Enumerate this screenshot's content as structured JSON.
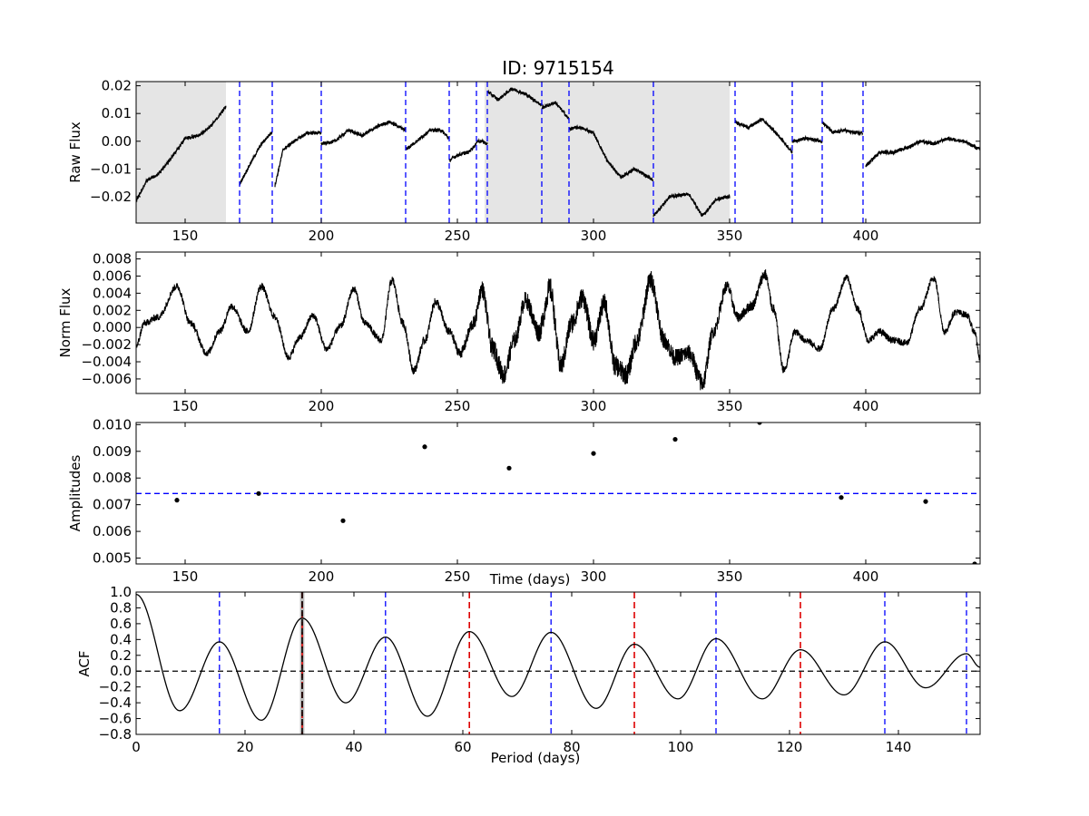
{
  "title": "ID: 9715154",
  "chart_data": [
    {
      "type": "line",
      "panel": "raw",
      "ylabel": "Raw Flux",
      "xlabel": "",
      "xlim": [
        132,
        442
      ],
      "ylim": [
        -0.0295,
        0.0215
      ],
      "xticks": [
        150,
        200,
        250,
        300,
        350,
        400
      ],
      "yticks": [
        0.02,
        0.01,
        0.0,
        -0.01,
        -0.02
      ],
      "ytick_labels": [
        "0.02",
        "0.01",
        "0.00",
        "−0.01",
        "−0.02"
      ],
      "shaded_regions": [
        [
          132,
          165
        ],
        [
          260,
          350
        ]
      ],
      "quarter_boundaries": [
        170,
        182,
        200,
        231,
        247,
        257,
        261,
        281,
        291,
        322,
        352,
        373,
        384,
        399
      ],
      "segments": [
        {
          "x": [
            132,
            136,
            140,
            145,
            150,
            155,
            160,
            165
          ],
          "y": [
            -0.0215,
            -0.014,
            -0.012,
            -0.006,
            0.001,
            0.002,
            0.006,
            0.0125
          ]
        },
        {
          "x": [
            170,
            174,
            178,
            182
          ],
          "y": [
            -0.0155,
            -0.008,
            -0.001,
            0.0035
          ]
        },
        {
          "x": [
            183,
            186,
            190,
            195,
            200
          ],
          "y": [
            -0.016,
            -0.003,
            0.0,
            0.003,
            0.003
          ]
        },
        {
          "x": [
            200,
            205,
            210,
            215,
            220,
            225,
            231
          ],
          "y": [
            -0.001,
            0.0,
            0.004,
            0.002,
            0.005,
            0.007,
            0.004
          ]
        },
        {
          "x": [
            231,
            235,
            240,
            244,
            247
          ],
          "y": [
            -0.003,
            0.0,
            0.004,
            0.004,
            0.001
          ]
        },
        {
          "x": [
            247,
            250,
            254,
            257
          ],
          "y": [
            -0.007,
            -0.005,
            -0.004,
            -0.001
          ]
        },
        {
          "x": [
            257,
            259,
            261
          ],
          "y": [
            0.0,
            0.0,
            -0.001
          ]
        },
        {
          "x": [
            261,
            265,
            270,
            275,
            281
          ],
          "y": [
            0.018,
            0.015,
            0.019,
            0.017,
            0.013
          ]
        },
        {
          "x": [
            281,
            286,
            291
          ],
          "y": [
            0.012,
            0.014,
            0.008
          ]
        },
        {
          "x": [
            291,
            295,
            300,
            305,
            310,
            315,
            322
          ],
          "y": [
            0.0045,
            0.005,
            0.003,
            -0.007,
            -0.013,
            -0.01,
            -0.014
          ]
        },
        {
          "x": [
            322,
            328,
            335,
            340,
            345,
            350
          ],
          "y": [
            -0.027,
            -0.02,
            -0.019,
            -0.027,
            -0.021,
            -0.02
          ]
        },
        {
          "x": [
            352,
            357,
            362,
            368,
            373
          ],
          "y": [
            0.007,
            0.005,
            0.008,
            0.002,
            -0.004
          ]
        },
        {
          "x": [
            373,
            378,
            384
          ],
          "y": [
            0.0,
            0.001,
            0.0
          ]
        },
        {
          "x": [
            384,
            388,
            392,
            396,
            399
          ],
          "y": [
            0.007,
            0.003,
            0.004,
            0.003,
            0.003
          ]
        },
        {
          "x": [
            400,
            405,
            410,
            416,
            420,
            425,
            430,
            436,
            442
          ],
          "y": [
            -0.009,
            -0.004,
            -0.004,
            -0.002,
            0.0,
            -0.001,
            0.001,
            0.0,
            -0.003
          ]
        }
      ]
    },
    {
      "type": "line",
      "panel": "norm",
      "ylabel": "Norm Flux",
      "xlabel": "",
      "xlim": [
        132,
        442
      ],
      "ylim": [
        -0.0077,
        0.0088
      ],
      "xticks": [
        150,
        200,
        250,
        300,
        350,
        400
      ],
      "yticks": [
        0.008,
        0.006,
        0.004,
        0.002,
        0.0,
        -0.002,
        -0.004,
        -0.006
      ],
      "ytick_labels": [
        "0.008",
        "0.006",
        "0.004",
        "0.002",
        "0.000",
        "−0.002",
        "−0.004",
        "−0.006"
      ],
      "x": [
        132,
        135,
        140,
        147,
        152,
        158,
        163,
        167,
        173,
        178,
        183,
        188,
        192,
        197,
        202,
        207,
        212,
        216,
        222,
        226,
        230,
        234,
        238,
        242,
        247,
        251,
        256,
        259,
        263,
        267,
        271,
        275,
        280,
        284,
        288,
        292,
        296,
        300,
        304,
        308,
        312,
        316,
        321,
        326,
        330,
        335,
        340,
        344,
        349,
        353,
        358,
        363,
        366,
        370,
        374,
        378,
        383,
        388,
        393,
        397,
        401,
        405,
        410,
        415,
        420,
        425,
        429,
        433,
        437,
        440,
        442
      ],
      "y": [
        -0.0022,
        0.0005,
        0.0012,
        0.0048,
        0.0005,
        -0.003,
        -0.0003,
        0.0025,
        -0.0005,
        0.0048,
        0.0012,
        -0.0035,
        -0.0012,
        0.0014,
        -0.0025,
        0.0001,
        0.0045,
        0.0005,
        -0.0015,
        0.0055,
        0.0005,
        -0.005,
        -0.0015,
        0.003,
        -0.0005,
        -0.003,
        0.0005,
        0.0045,
        -0.0025,
        -0.0055,
        -0.0015,
        0.0032,
        -0.0005,
        0.0045,
        -0.0045,
        0.0005,
        0.0035,
        -0.0015,
        0.0028,
        -0.0045,
        -0.0055,
        -0.0015,
        0.0055,
        -0.0015,
        -0.0035,
        -0.003,
        -0.0065,
        -0.0005,
        0.0048,
        0.0012,
        0.0025,
        0.0062,
        0.0022,
        -0.005,
        -0.0005,
        -0.0015,
        -0.0025,
        0.0022,
        0.0058,
        0.0022,
        -0.0015,
        -0.0005,
        -0.0015,
        -0.0018,
        0.0022,
        0.0058,
        -0.0005,
        0.0018,
        0.0015,
        -0.0005,
        -0.0038
      ],
      "noise_amplitude": [
        0.0004,
        0.0004,
        0.0004,
        0.0004,
        0.0004,
        0.0004,
        0.0004,
        0.0004,
        0.0004,
        0.0004,
        0.0004,
        0.0004,
        0.0004,
        0.0004,
        0.0004,
        0.0004,
        0.0004,
        0.0004,
        0.0004,
        0.0005,
        0.0005,
        0.0005,
        0.0005,
        0.0005,
        0.0005,
        0.0006,
        0.0008,
        0.001,
        0.0012,
        0.0012,
        0.001,
        0.001,
        0.0012,
        0.0014,
        0.0012,
        0.0012,
        0.0012,
        0.0012,
        0.0012,
        0.0012,
        0.0012,
        0.0012,
        0.0012,
        0.001,
        0.001,
        0.001,
        0.0012,
        0.0008,
        0.0007,
        0.0006,
        0.0006,
        0.0007,
        0.0006,
        0.0005,
        0.0004,
        0.0004,
        0.0004,
        0.0004,
        0.0004,
        0.0004,
        0.0004,
        0.0004,
        0.0004,
        0.0004,
        0.0004,
        0.0004,
        0.0004,
        0.0004,
        0.0004,
        0.0004,
        0.0004
      ]
    },
    {
      "type": "scatter",
      "panel": "amplitudes",
      "ylabel": "Amplitudes",
      "xlabel": "Time (days)",
      "xlim": [
        132,
        442
      ],
      "ylim": [
        0.00478,
        0.01008
      ],
      "xticks": [
        150,
        200,
        250,
        300,
        350,
        400
      ],
      "yticks": [
        0.01,
        0.009,
        0.008,
        0.007,
        0.006,
        0.005
      ],
      "ytick_labels": [
        "0.010",
        "0.009",
        "0.008",
        "0.007",
        "0.006",
        "0.005"
      ],
      "points": [
        {
          "x": 147,
          "y": 0.00717
        },
        {
          "x": 177,
          "y": 0.00742
        },
        {
          "x": 208,
          "y": 0.0064
        },
        {
          "x": 238,
          "y": 0.00917
        },
        {
          "x": 269,
          "y": 0.00837
        },
        {
          "x": 300,
          "y": 0.00892
        },
        {
          "x": 330,
          "y": 0.00945
        },
        {
          "x": 361,
          "y": 0.01008
        },
        {
          "x": 391,
          "y": 0.00727
        },
        {
          "x": 422,
          "y": 0.00712
        },
        {
          "x": 440,
          "y": 0.00478
        }
      ],
      "mean_line": 0.00742
    },
    {
      "type": "line",
      "panel": "acf",
      "ylabel": "ACF",
      "xlabel": "Period (days)",
      "xlim": [
        0,
        155
      ],
      "ylim": [
        -0.8,
        1.0
      ],
      "xticks": [
        0,
        20,
        40,
        60,
        80,
        100,
        120,
        140
      ],
      "yticks": [
        1.0,
        0.8,
        0.6,
        0.4,
        0.2,
        0.0,
        -0.2,
        -0.4,
        -0.6,
        -0.8
      ],
      "ytick_labels": [
        "1.0",
        "0.8",
        "0.6",
        "0.4",
        "0.2",
        "0.0",
        "−0.2",
        "−0.4",
        "−0.6",
        "−0.8"
      ],
      "extrema": {
        "x": [
          0,
          8,
          15.3,
          23,
          30.5,
          38.5,
          45.8,
          53.5,
          61.2,
          69,
          76.2,
          84.5,
          91.5,
          99.5,
          106.5,
          115,
          122,
          130,
          137.5,
          145,
          152.5,
          155
        ],
        "y": [
          0.97,
          -0.5,
          0.37,
          -0.62,
          0.67,
          -0.4,
          0.43,
          -0.57,
          0.5,
          -0.32,
          0.49,
          -0.47,
          0.34,
          -0.35,
          0.41,
          -0.35,
          0.27,
          -0.3,
          0.37,
          -0.21,
          0.22,
          0.05
        ]
      },
      "zero_line": 0.0,
      "blue_lines": [
        15.3,
        45.8,
        76.2,
        106.5,
        137.5,
        152.5
      ],
      "red_lines": [
        30.5,
        61.2,
        91.5,
        122
      ],
      "black_line": 30.5,
      "period_band": [
        30.1,
        30.9
      ]
    }
  ]
}
